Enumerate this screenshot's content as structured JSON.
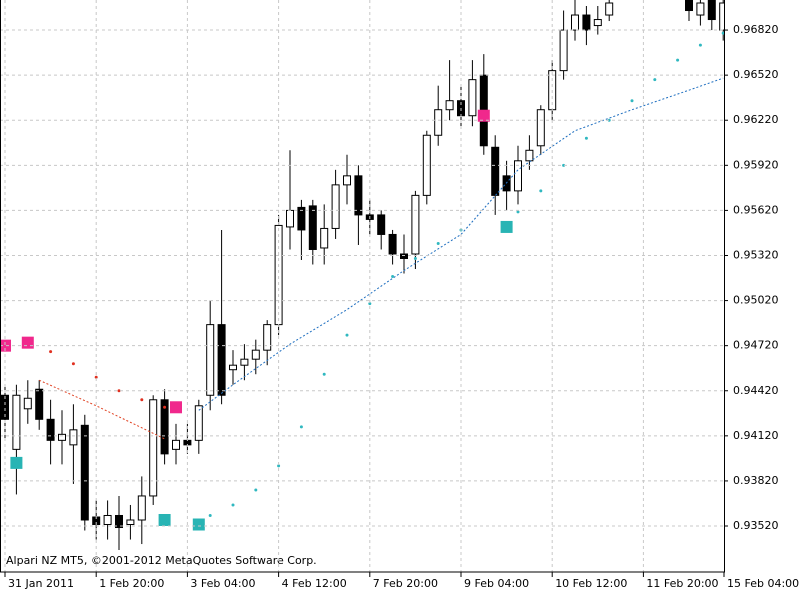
{
  "chart_data": {
    "type": "candlestick",
    "watermark": "Alpari NZ MT5, ©2001-2012 MetaQuotes Software Corp.",
    "categories": [
      "31 Jan 2011",
      null,
      null,
      null,
      null,
      null,
      null,
      null,
      "1 Feb 20:00",
      null,
      null,
      null,
      null,
      null,
      null,
      null,
      "3 Feb 04:00",
      null,
      null,
      null,
      null,
      null,
      null,
      null,
      "4 Feb 12:00",
      null,
      null,
      null,
      null,
      null,
      null,
      null,
      "7 Feb 20:00",
      null,
      null,
      null,
      null,
      null,
      null,
      null,
      "9 Feb 04:00",
      null,
      null,
      null,
      null,
      null,
      null,
      null,
      "10 Feb 12:00",
      null,
      null,
      null,
      null,
      null,
      null,
      null,
      "11 Feb 20:00",
      null,
      null,
      null,
      null,
      null,
      null,
      null,
      "15 Feb 04:00"
    ],
    "open": [
      0.9439,
      0.9403,
      0.943,
      0.9443,
      0.9423,
      0.9409,
      0.9406,
      0.9419,
      0.9358,
      0.9353,
      0.9359,
      0.9353,
      0.9356,
      0.9372,
      0.9436,
      0.9403,
      0.9409,
      0.9409,
      0.9439,
      0.9486,
      0.9456,
      0.9459,
      0.9463,
      0.9469,
      0.9486,
      0.9551,
      0.9564,
      0.9565,
      0.9537,
      0.955,
      0.9579,
      0.9585,
      0.9559,
      0.9559,
      0.9546,
      0.9533,
      0.9533,
      0.9572,
      0.9612,
      0.9629,
      0.9635,
      0.9625,
      0.9652,
      0.9604,
      0.9585,
      0.9575,
      0.9595,
      0.9605,
      0.9629,
      0.9655,
      0.9682,
      0.9692,
      0.9685,
      0.9692,
      null,
      null,
      null,
      null,
      null,
      null,
      0.9702,
      0.9692,
      0.9702,
      0.9682,
      null
    ],
    "high": [
      0.9446,
      0.9446,
      0.9449,
      0.9449,
      0.9436,
      0.9429,
      0.9433,
      0.9426,
      0.9369,
      0.9369,
      0.9372,
      0.9366,
      0.9385,
      0.9439,
      0.9443,
      0.942,
      0.942,
      0.9436,
      0.9502,
      0.9549,
      0.9469,
      0.9473,
      0.9476,
      0.9489,
      0.9559,
      0.9602,
      0.9569,
      0.9569,
      0.9566,
      0.9589,
      0.9599,
      0.9592,
      0.9569,
      0.9562,
      0.9549,
      0.9546,
      0.9575,
      0.9615,
      0.9645,
      0.9662,
      0.9645,
      0.9662,
      0.9666,
      0.9612,
      0.9595,
      0.9605,
      0.9612,
      0.9632,
      0.9662,
      0.9695,
      0.9702,
      0.9698,
      0.9698,
      0.9702,
      null,
      null,
      null,
      null,
      null,
      null,
      0.9702,
      0.9702,
      0.9702,
      0.9702,
      null
    ],
    "low": [
      0.9409,
      0.9373,
      0.942,
      0.9416,
      0.9393,
      0.9393,
      0.938,
      0.9349,
      0.9343,
      0.9343,
      0.9336,
      0.9343,
      0.934,
      0.9366,
      0.9393,
      0.9393,
      0.94,
      0.94,
      0.9429,
      0.9433,
      0.9446,
      0.9449,
      0.9453,
      0.9459,
      0.9479,
      0.9536,
      0.9529,
      0.9526,
      0.9526,
      0.9543,
      0.9566,
      0.9539,
      0.9546,
      0.9536,
      0.9526,
      0.952,
      0.9523,
      0.9566,
      0.9605,
      0.9622,
      0.9618,
      0.9618,
      0.9599,
      0.9559,
      0.9562,
      0.9566,
      0.9589,
      0.9599,
      0.9622,
      0.9649,
      0.9675,
      0.9672,
      0.9679,
      0.9688,
      null,
      null,
      null,
      null,
      null,
      null,
      0.9688,
      0.9685,
      0.9682,
      0.9675,
      null
    ],
    "close": [
      0.9423,
      0.9439,
      0.9437,
      0.9423,
      0.9409,
      0.9413,
      0.9416,
      0.9356,
      0.9353,
      0.9359,
      0.9351,
      0.9356,
      0.9372,
      0.9436,
      0.94,
      0.9409,
      0.9406,
      0.9432,
      0.9486,
      0.9439,
      0.9459,
      0.9463,
      0.9469,
      0.9486,
      0.9552,
      0.9562,
      0.9549,
      0.9536,
      0.955,
      0.9579,
      0.9585,
      0.9559,
      0.9556,
      0.9546,
      0.9533,
      0.953,
      0.9572,
      0.9612,
      0.9629,
      0.9635,
      0.9625,
      0.9649,
      0.9605,
      0.9572,
      0.9575,
      0.9595,
      0.9602,
      0.9629,
      0.9655,
      0.9682,
      0.9692,
      0.9682,
      0.9689,
      0.97,
      null,
      null,
      null,
      null,
      null,
      null,
      0.9695,
      0.97,
      0.9689,
      0.97,
      null
    ],
    "ylim": [
      0.93214,
      0.9702
    ],
    "yticks": [
      {
        "value": 0.9352,
        "label": "0.93520"
      },
      {
        "value": 0.9382,
        "label": "0.93820"
      },
      {
        "value": 0.9412,
        "label": "0.94120"
      },
      {
        "value": 0.9442,
        "label": "0.94420"
      },
      {
        "value": 0.9472,
        "label": "0.94720"
      },
      {
        "value": 0.9502,
        "label": "0.95020"
      },
      {
        "value": 0.9532,
        "label": "0.95320"
      },
      {
        "value": 0.9562,
        "label": "0.95620"
      },
      {
        "value": 0.9592,
        "label": "0.95920"
      },
      {
        "value": 0.9622,
        "label": "0.96220"
      },
      {
        "value": 0.9652,
        "label": "0.96520"
      },
      {
        "value": 0.9682,
        "label": "0.96820"
      }
    ],
    "grid": true,
    "lines": [
      {
        "color": "#1f6fc0",
        "x": [
          17,
          20,
          25,
          30,
          35,
          40,
          45,
          50,
          55,
          60,
          63
        ],
        "values": [
          0.9429,
          0.9446,
          0.9473,
          0.9496,
          0.9522,
          0.9546,
          0.9589,
          0.9615,
          0.9629,
          0.9642,
          0.965
        ]
      },
      {
        "color": "#e04020",
        "x": [
          3,
          8,
          14
        ],
        "values": [
          0.9449,
          0.9432,
          0.941
        ]
      }
    ],
    "dots": {
      "color": "#30b8c0",
      "x": [
        18,
        20,
        22,
        24,
        26,
        28,
        30,
        32,
        34,
        36,
        38,
        40,
        45,
        47,
        49,
        51,
        53,
        55,
        57,
        59,
        61,
        63
      ],
      "values": [
        0.9359,
        0.9366,
        0.9376,
        0.9392,
        0.9418,
        0.9453,
        0.9479,
        0.95,
        0.9518,
        0.953,
        0.954,
        0.9549,
        0.9561,
        0.9575,
        0.9592,
        0.961,
        0.9622,
        0.9635,
        0.9649,
        0.9662,
        0.9672,
        0.968
      ]
    },
    "red_dots": {
      "color": "#e03020",
      "x": [
        4,
        6,
        8,
        10,
        12,
        14
      ],
      "values": [
        0.9468,
        0.946,
        0.9451,
        0.9442,
        0.9436,
        0.9431
      ]
    },
    "squares": [
      {
        "color": "#f0288c",
        "x": [
          0,
          2,
          15,
          42
        ],
        "values": [
          0.9472,
          0.9474,
          0.9431,
          0.9625
        ]
      },
      {
        "color": "#28b4b4",
        "x": [
          1,
          14,
          17,
          44
        ],
        "values": [
          0.9394,
          0.9356,
          0.9353,
          0.9551
        ]
      }
    ]
  }
}
